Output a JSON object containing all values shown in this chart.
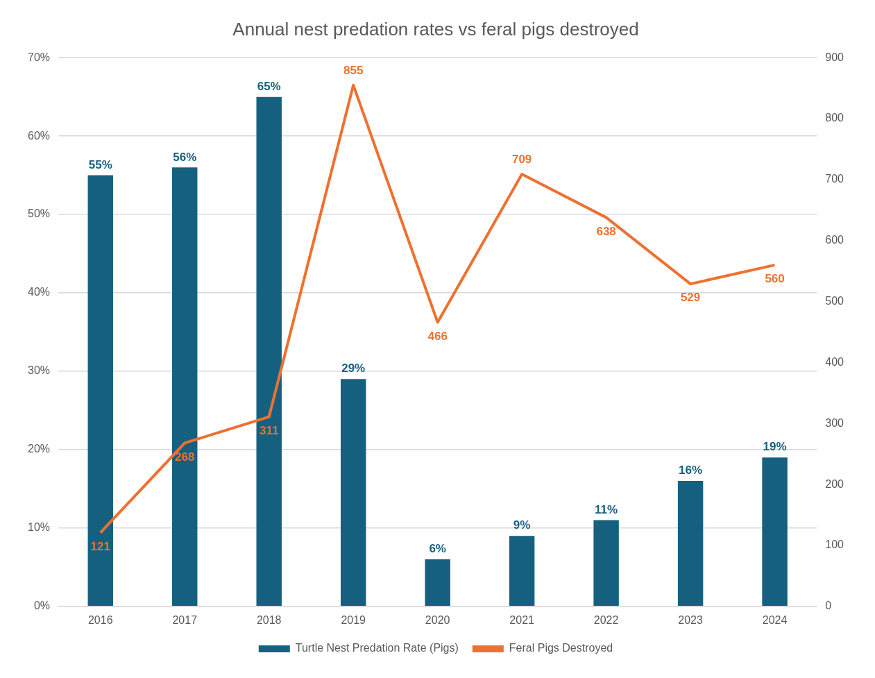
{
  "chart_data": {
    "type": "bar",
    "title": "Annual nest predation rates vs feral pigs destroyed",
    "categories": [
      "2016",
      "2017",
      "2018",
      "2019",
      "2020",
      "2021",
      "2022",
      "2023",
      "2024"
    ],
    "series": [
      {
        "name": "Turtle Nest Predation Rate (Pigs)",
        "color": "#16607f",
        "values": [
          55,
          56,
          65,
          29,
          6,
          9,
          11,
          16,
          19
        ],
        "value_labels": [
          "55%",
          "56%",
          "65%",
          "29%",
          "6%",
          "9%",
          "11%",
          "16%",
          "19%"
        ]
      },
      {
        "name": "Feral Pigs Destroyed",
        "type": "line",
        "axis": "y2",
        "color": "#ed7131",
        "values": [
          121,
          268,
          311,
          855,
          466,
          709,
          638,
          529,
          560
        ],
        "value_labels": [
          "121",
          "268",
          "311",
          "855",
          "466",
          "709",
          "638",
          "529",
          "560"
        ]
      }
    ],
    "ylim": [
      0,
      70
    ],
    "yticks": [
      {
        "value": 0,
        "label": "0%"
      },
      {
        "value": 10,
        "label": "10%"
      },
      {
        "value": 20,
        "label": "20%"
      },
      {
        "value": 30,
        "label": "30%"
      },
      {
        "value": 40,
        "label": "40%"
      },
      {
        "value": 50,
        "label": "50%"
      },
      {
        "value": 60,
        "label": "60%"
      },
      {
        "value": 70,
        "label": "70%"
      }
    ],
    "y2lim": [
      0,
      900
    ],
    "y2ticks": [
      0,
      100,
      200,
      300,
      400,
      500,
      600,
      700,
      800,
      900
    ],
    "grid": "y",
    "legend": "bottom",
    "marker": "none",
    "line_style": "solid"
  }
}
